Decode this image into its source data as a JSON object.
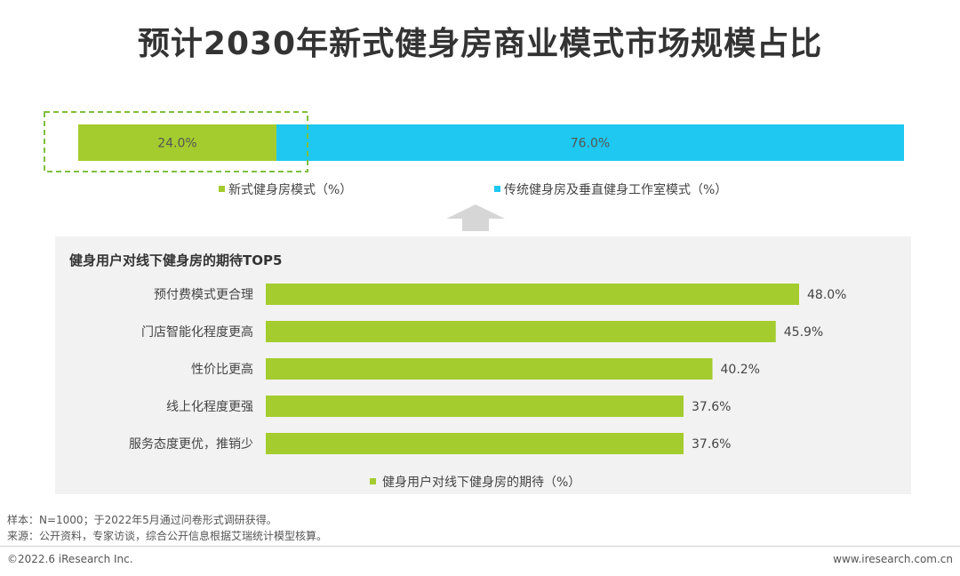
{
  "title": "预计2030年新式健身房商业模式市场规模占比",
  "colors": {
    "green": "#a4cc2e",
    "cyan": "#1ec8f0",
    "dash": "#7fbf3f",
    "arrow": "#d6d6d6",
    "panel": "#f2f2f2"
  },
  "chart_data": [
    {
      "type": "bar",
      "orientation": "horizontal-stacked",
      "title": "",
      "series": [
        {
          "name": "新式健身房模式（%）",
          "values": [
            24.0
          ],
          "label": "24.0%",
          "color": "#a4cc2e"
        },
        {
          "name": "传统健身房及垂直健身工作室模式（%）",
          "values": [
            76.0
          ],
          "label": "76.0%",
          "color": "#1ec8f0"
        }
      ],
      "xlim": [
        0,
        100
      ],
      "legend_position": "bottom"
    },
    {
      "type": "bar",
      "orientation": "horizontal",
      "title": "健身用户对线下健身房的期待TOP5",
      "categories": [
        "预付费模式更合理",
        "门店智能化程度更高",
        "性价比更高",
        "线上化程度更强",
        "服务态度更优，推销少"
      ],
      "series": [
        {
          "name": "健身用户对线下健身房的期待（%）",
          "values": [
            48.0,
            45.9,
            40.2,
            37.6,
            37.6
          ],
          "color": "#a4cc2e"
        }
      ],
      "value_labels": [
        "48.0%",
        "45.9%",
        "40.2%",
        "37.6%",
        "37.6%"
      ],
      "xlim": [
        0,
        50
      ],
      "legend_position": "bottom"
    }
  ],
  "footnotes": {
    "sample": "样本：N=1000；于2022年5月通过问卷形式调研获得。",
    "source": "来源：公开资料，专家访谈，综合公开信息根据艾瑞统计模型核算。"
  },
  "footer": {
    "copyright": "©2022.6 iResearch Inc.",
    "url": "www.iresearch.com.cn"
  }
}
